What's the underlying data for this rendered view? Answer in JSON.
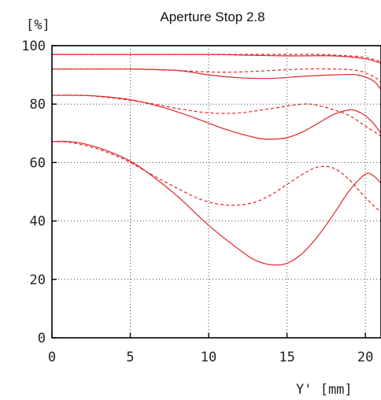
{
  "chart_data": {
    "type": "line",
    "title": "Aperture Stop 2.8",
    "xlabel": "Y' [mm]",
    "ylabel": "[%]",
    "xlim": [
      0,
      21
    ],
    "ylim": [
      0,
      100
    ],
    "xticks": [
      "0",
      "5",
      "10",
      "15",
      "20"
    ],
    "xtick_values": [
      0,
      5,
      10,
      15,
      20
    ],
    "yticks": [
      "0",
      "20",
      "40",
      "60",
      "80",
      "100"
    ],
    "ytick_values": [
      0,
      20,
      40,
      60,
      80,
      100
    ],
    "grid": true,
    "line_color": "#e0262a",
    "series": [
      {
        "style": "solid",
        "x": [
          0,
          5,
          10,
          12,
          15,
          18,
          20,
          21
        ],
        "y": [
          97,
          97,
          97,
          96.8,
          96.5,
          96.5,
          95.5,
          94
        ]
      },
      {
        "style": "dashed",
        "x": [
          0,
          5,
          10,
          12,
          15,
          17,
          19,
          20,
          21
        ],
        "y": [
          97,
          97,
          97,
          97,
          97,
          97,
          96.5,
          96,
          94.5
        ]
      },
      {
        "style": "solid",
        "x": [
          0,
          2,
          5,
          8,
          10,
          12,
          14,
          16,
          18,
          19.5,
          20.5,
          21
        ],
        "y": [
          92,
          92,
          92,
          91.5,
          90,
          89,
          88.8,
          89.5,
          90,
          90,
          88,
          85
        ]
      },
      {
        "style": "dashed",
        "x": [
          0,
          5,
          8,
          10,
          12,
          14,
          16,
          18,
          19.5,
          20.5,
          21
        ],
        "y": [
          92,
          92,
          91.5,
          91,
          91,
          91.5,
          92,
          92,
          91.5,
          89.5,
          87.5
        ]
      },
      {
        "style": "solid",
        "x": [
          0,
          1.5,
          3,
          5,
          7,
          9,
          11,
          13,
          14,
          15,
          16,
          17,
          18,
          19,
          19.5,
          20,
          20.5,
          21
        ],
        "y": [
          83,
          83,
          82.7,
          81.5,
          79,
          75.5,
          71.5,
          68.5,
          68,
          68.5,
          70.5,
          73.5,
          76.5,
          78,
          77.5,
          76,
          73.5,
          70
        ]
      },
      {
        "style": "dashed",
        "x": [
          0,
          2,
          4,
          6,
          8,
          10,
          12,
          14,
          16,
          17,
          18,
          19,
          20,
          21
        ],
        "y": [
          83,
          83,
          82,
          80.5,
          78.5,
          77,
          77,
          78.5,
          80,
          79.5,
          78,
          76,
          72.5,
          69
        ]
      },
      {
        "style": "solid",
        "x": [
          0,
          1,
          2,
          3,
          4,
          5,
          6,
          8,
          10,
          12,
          13,
          14,
          15,
          16,
          17,
          18,
          19,
          20,
          20.5,
          21
        ],
        "y": [
          67.2,
          67.2,
          66.5,
          65,
          63,
          60.5,
          57,
          48.5,
          38.5,
          30,
          26.5,
          25,
          25.5,
          29,
          35,
          42.5,
          50.5,
          56,
          55.5,
          53
        ]
      },
      {
        "style": "dashed",
        "x": [
          0,
          1,
          2,
          3,
          4,
          5,
          7,
          9,
          10,
          11,
          12,
          13,
          14,
          15,
          16,
          17,
          18,
          19,
          20,
          21
        ],
        "y": [
          67.2,
          67,
          66,
          64.5,
          62.5,
          60,
          54,
          48.5,
          46.5,
          45.5,
          45.5,
          46.5,
          49,
          52.5,
          56,
          58.5,
          58,
          54,
          48,
          43
        ]
      }
    ]
  }
}
